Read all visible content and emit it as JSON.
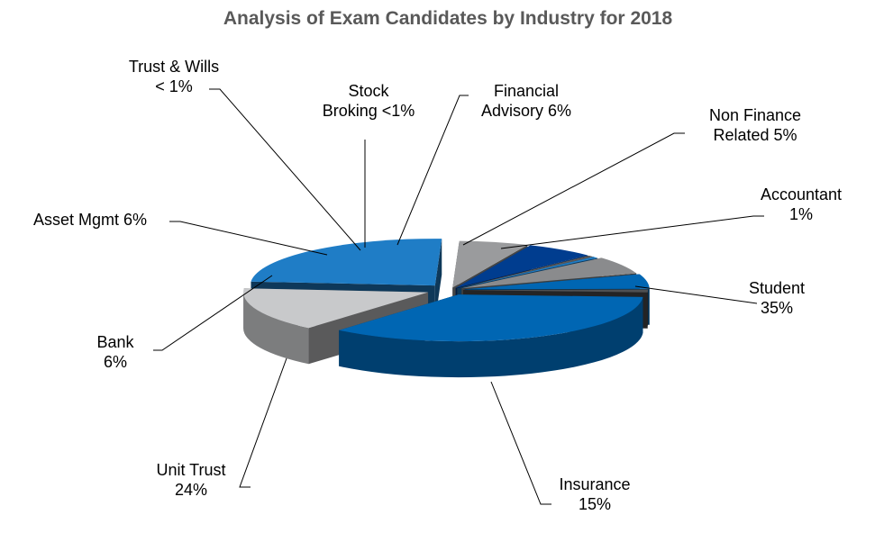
{
  "chart_data": {
    "type": "pie",
    "style": "3d-exploded",
    "title": "Analysis of Exam Candidates by Industry for 2018",
    "slices": [
      {
        "name": "Student",
        "value": 35,
        "label_lines": [
          "Student",
          "35%"
        ],
        "color": "#0066B3"
      },
      {
        "name": "Insurance",
        "value": 15,
        "label_lines": [
          "Insurance",
          "15%"
        ],
        "color": "#C8C9CB"
      },
      {
        "name": "Unit Trust",
        "value": 24,
        "label_lines": [
          "Unit Trust",
          "24%"
        ],
        "color": "#1F7DC6"
      },
      {
        "name": "Bank",
        "value": 6,
        "label_lines": [
          "Bank",
          "6%"
        ],
        "color": "#9A9B9D"
      },
      {
        "name": "Asset Mgmt",
        "value": 6,
        "label_lines": [
          "Asset Mgmt 6%"
        ],
        "color": "#003D8F"
      },
      {
        "name": "Trust & Wills",
        "value": 0.5,
        "label_lines": [
          "Trust & Wills",
          "< 1%"
        ],
        "color": "#5A5A5C"
      },
      {
        "name": "Stock Broking",
        "value": 0.5,
        "label_lines": [
          "Stock",
          "Broking <1%"
        ],
        "color": "#1F7DC6"
      },
      {
        "name": "Financial Advisory",
        "value": 6,
        "label_lines": [
          "Financial",
          "Advisory 6%"
        ],
        "color": "#8A8B8D"
      },
      {
        "name": "Non Finance Related",
        "value": 5,
        "label_lines": [
          "Non Finance",
          "Related 5%"
        ],
        "color": "#0066B3"
      },
      {
        "name": "Accountant",
        "value": 1,
        "label_lines": [
          "Accountant",
          "1%"
        ],
        "color": "#4F5052"
      }
    ]
  }
}
